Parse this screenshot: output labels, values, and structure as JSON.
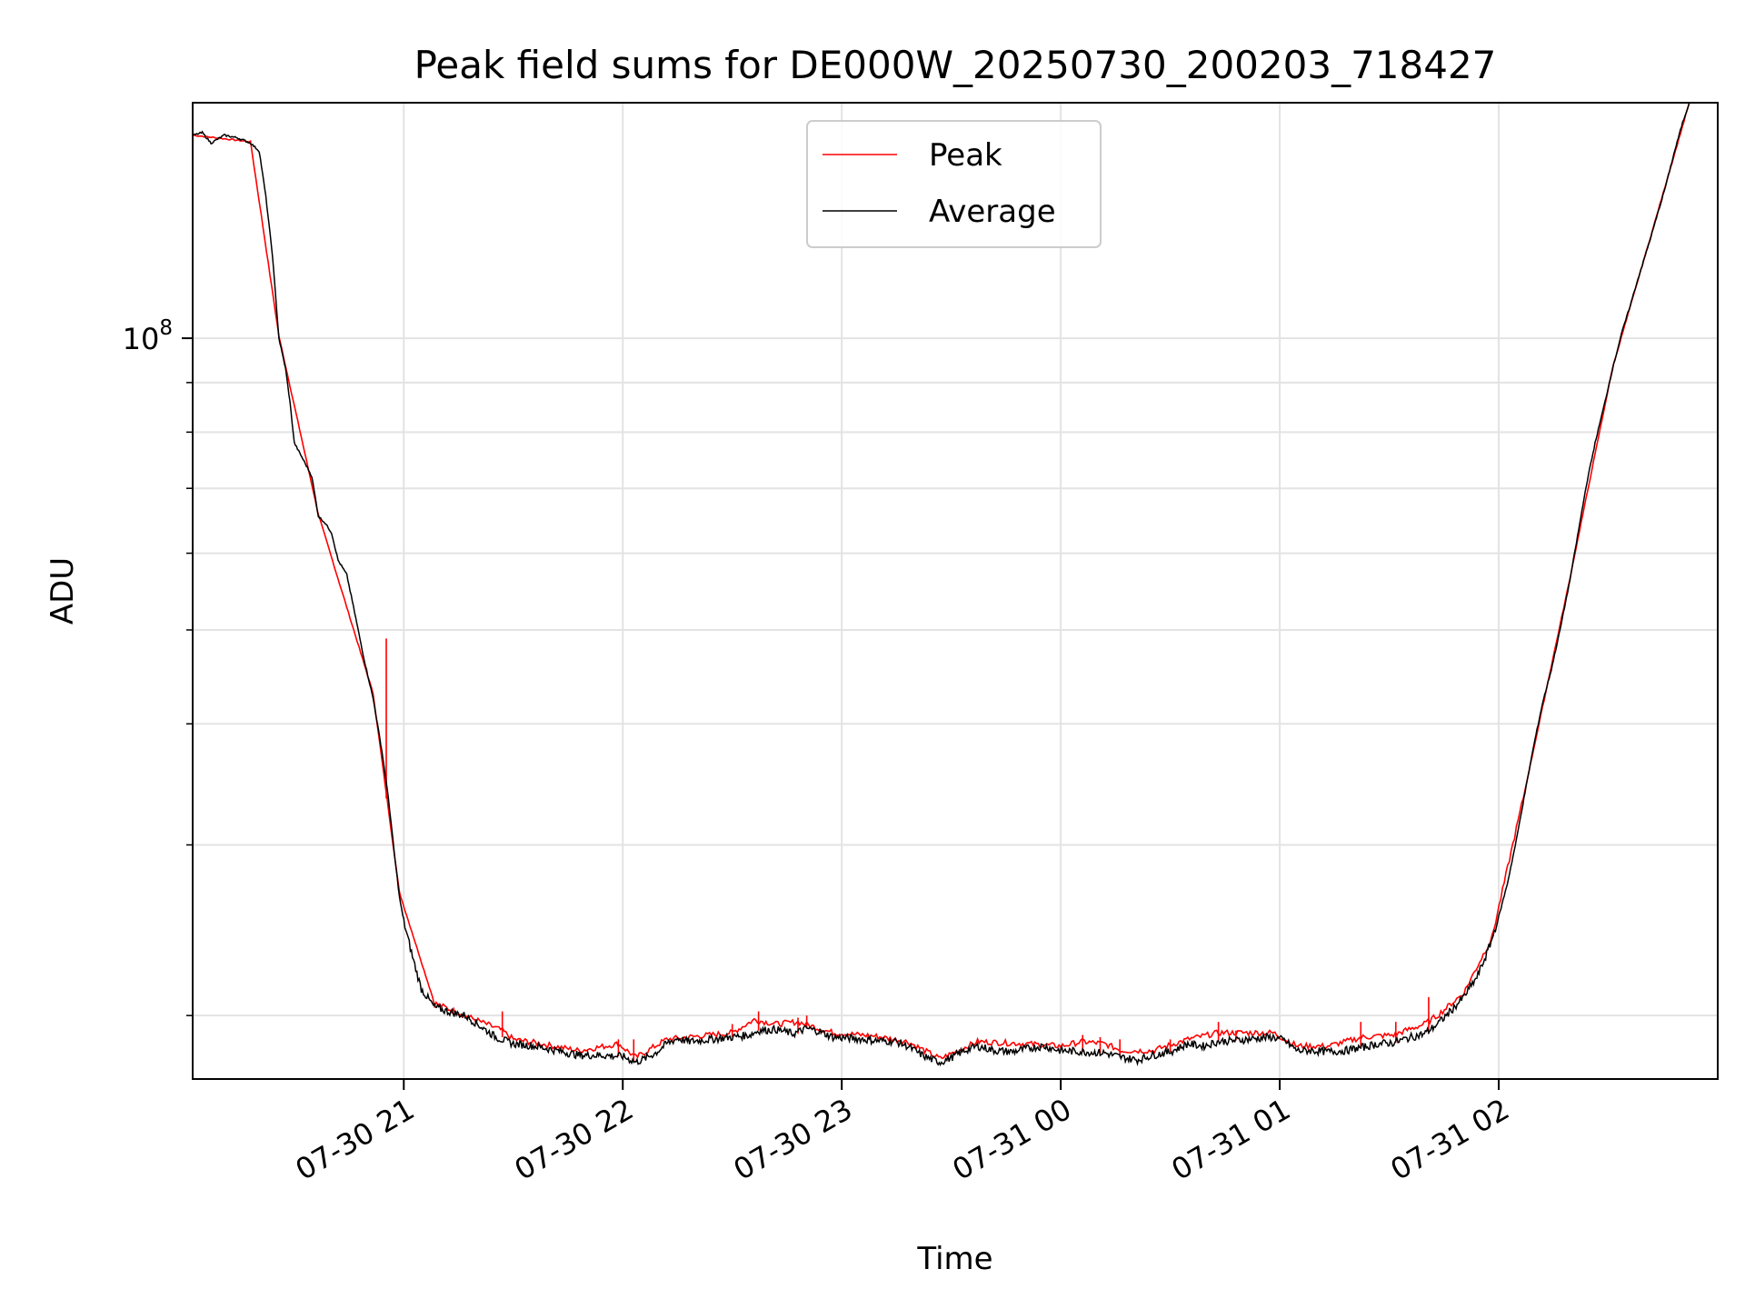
{
  "chart_data": {
    "type": "line",
    "title": "Peak field sums for DE000W_20250730_200203_718427",
    "xlabel": "Time",
    "ylabel": "ADU",
    "x_ticks": [
      "07-30 21",
      "07-30 22",
      "07-30 23",
      "07-31 00",
      "07-31 01",
      "07-31 02"
    ],
    "x_tick_hours": [
      1,
      2,
      3,
      4,
      5,
      6
    ],
    "xlim_hours": [
      0.036,
      7.0
    ],
    "y_scale": "log",
    "y_major_ticks": [
      {
        "value": 100000000,
        "base": "10",
        "exponent": "8"
      }
    ],
    "y_minor_ticks": [
      20000000,
      30000000,
      40000000,
      50000000,
      60000000,
      70000000,
      80000000,
      90000000,
      200000000
    ],
    "ylim": [
      17200000,
      175000000
    ],
    "grid": true,
    "legend": {
      "position": "top-center",
      "entries": [
        "Peak",
        "Average"
      ]
    },
    "colors": {
      "Peak": "#ff0000",
      "Average": "#000000"
    },
    "x_anchor_time": "2025-07-30 20:00",
    "series": [
      {
        "name": "Average",
        "points": [
          [
            0.04,
            162000000
          ],
          [
            0.08,
            163000000
          ],
          [
            0.12,
            159000000
          ],
          [
            0.18,
            162000000
          ],
          [
            0.24,
            161000000
          ],
          [
            0.3,
            159000000
          ],
          [
            0.34,
            156000000
          ],
          [
            0.37,
            140000000
          ],
          [
            0.4,
            122000000
          ],
          [
            0.43,
            100000000
          ],
          [
            0.46,
            93000000
          ],
          [
            0.48,
            86000000
          ],
          [
            0.5,
            78000000
          ],
          [
            0.54,
            75000000
          ],
          [
            0.58,
            72000000
          ],
          [
            0.61,
            65500000
          ],
          [
            0.64,
            64500000
          ],
          [
            0.67,
            63000000
          ],
          [
            0.7,
            59000000
          ],
          [
            0.74,
            57000000
          ],
          [
            0.78,
            51500000
          ],
          [
            0.82,
            46500000
          ],
          [
            0.86,
            42500000
          ],
          [
            0.9,
            37500000
          ],
          [
            0.93,
            33500000
          ],
          [
            0.96,
            29000000
          ],
          [
            0.98,
            26500000
          ],
          [
            1.0,
            25000000
          ],
          [
            1.04,
            23000000
          ],
          [
            1.08,
            21300000
          ],
          [
            1.14,
            20400000
          ],
          [
            1.2,
            20200000
          ],
          [
            1.28,
            20000000
          ],
          [
            1.35,
            19500000
          ],
          [
            1.42,
            19000000
          ],
          [
            1.5,
            18700000
          ],
          [
            1.6,
            18600000
          ],
          [
            1.7,
            18400000
          ],
          [
            1.8,
            18200000
          ],
          [
            1.9,
            18200000
          ],
          [
            2.0,
            18150000
          ],
          [
            2.06,
            17900000
          ],
          [
            2.1,
            18050000
          ],
          [
            2.15,
            18300000
          ],
          [
            2.2,
            18700000
          ],
          [
            2.25,
            18950000
          ],
          [
            2.3,
            18800000
          ],
          [
            2.4,
            18900000
          ],
          [
            2.5,
            19000000
          ],
          [
            2.58,
            19100000
          ],
          [
            2.62,
            19300000
          ],
          [
            2.7,
            19350000
          ],
          [
            2.78,
            19150000
          ],
          [
            2.84,
            19400000
          ],
          [
            2.9,
            19250000
          ],
          [
            2.96,
            19000000
          ],
          [
            3.05,
            18950000
          ],
          [
            3.15,
            18850000
          ],
          [
            3.25,
            18800000
          ],
          [
            3.3,
            18600000
          ],
          [
            3.35,
            18300000
          ],
          [
            3.4,
            18050000
          ],
          [
            3.45,
            17900000
          ],
          [
            3.5,
            18100000
          ],
          [
            3.56,
            18400000
          ],
          [
            3.62,
            18600000
          ],
          [
            3.7,
            18400000
          ],
          [
            3.78,
            18350000
          ],
          [
            3.85,
            18500000
          ],
          [
            3.92,
            18600000
          ],
          [
            4.0,
            18400000
          ],
          [
            4.1,
            18350000
          ],
          [
            4.2,
            18300000
          ],
          [
            4.28,
            18100000
          ],
          [
            4.35,
            18000000
          ],
          [
            4.42,
            18200000
          ],
          [
            4.5,
            18350000
          ],
          [
            4.58,
            18700000
          ],
          [
            4.65,
            18600000
          ],
          [
            4.72,
            18800000
          ],
          [
            4.8,
            18850000
          ],
          [
            4.9,
            18950000
          ],
          [
            4.97,
            19000000
          ],
          [
            5.02,
            18850000
          ],
          [
            5.08,
            18400000
          ],
          [
            5.15,
            18400000
          ],
          [
            5.22,
            18350000
          ],
          [
            5.3,
            18400000
          ],
          [
            5.38,
            18550000
          ],
          [
            5.45,
            18700000
          ],
          [
            5.52,
            18750000
          ],
          [
            5.6,
            19000000
          ],
          [
            5.66,
            19150000
          ],
          [
            5.72,
            19600000
          ],
          [
            5.78,
            20200000
          ],
          [
            5.84,
            20900000
          ],
          [
            5.9,
            21900000
          ],
          [
            5.94,
            23000000
          ],
          [
            5.97,
            24000000
          ],
          [
            6.0,
            25300000
          ],
          [
            6.04,
            27400000
          ],
          [
            6.08,
            30300000
          ],
          [
            6.12,
            34000000
          ],
          [
            6.16,
            38000000
          ],
          [
            6.2,
            42000000
          ],
          [
            6.24,
            45500000
          ],
          [
            6.28,
            50000000
          ],
          [
            6.32,
            55500000
          ],
          [
            6.36,
            62500000
          ],
          [
            6.4,
            70500000
          ],
          [
            6.44,
            78000000
          ],
          [
            6.48,
            85000000
          ],
          [
            6.52,
            93000000
          ],
          [
            6.56,
            101000000
          ],
          [
            6.6,
            108000000
          ],
          [
            6.64,
            116000000
          ],
          [
            6.68,
            124000000
          ],
          [
            6.72,
            133000000
          ],
          [
            6.76,
            143000000
          ],
          [
            6.8,
            155000000
          ],
          [
            6.84,
            167000000
          ],
          [
            6.87,
            175000000
          ]
        ]
      },
      {
        "name": "Peak",
        "points": [
          [
            0.04,
            162000000
          ],
          [
            0.3,
            159500000
          ],
          [
            0.43,
            100500000
          ],
          [
            0.61,
            65800000
          ],
          [
            0.86,
            43000000
          ],
          [
            0.98,
            26800000
          ],
          [
            1.14,
            20600000
          ],
          [
            1.45,
            19300000
          ],
          [
            1.5,
            18900000
          ],
          [
            1.6,
            18750000
          ],
          [
            1.8,
            18400000
          ],
          [
            1.98,
            18700000
          ],
          [
            2.06,
            18100000
          ],
          [
            2.2,
            18900000
          ],
          [
            2.3,
            19000000
          ],
          [
            2.5,
            19200000
          ],
          [
            2.6,
            19800000
          ],
          [
            2.7,
            19600000
          ],
          [
            2.8,
            19700000
          ],
          [
            2.96,
            19200000
          ],
          [
            3.15,
            19050000
          ],
          [
            3.3,
            18800000
          ],
          [
            3.45,
            18050000
          ],
          [
            3.62,
            18800000
          ],
          [
            3.85,
            18700000
          ],
          [
            4.0,
            18600000
          ],
          [
            4.1,
            18800000
          ],
          [
            4.2,
            18700000
          ],
          [
            4.28,
            18400000
          ],
          [
            4.42,
            18400000
          ],
          [
            4.58,
            18900000
          ],
          [
            4.72,
            19200000
          ],
          [
            4.8,
            19200000
          ],
          [
            4.97,
            19200000
          ],
          [
            5.08,
            18600000
          ],
          [
            5.22,
            18600000
          ],
          [
            5.38,
            19000000
          ],
          [
            5.52,
            19100000
          ],
          [
            5.66,
            19600000
          ],
          [
            5.72,
            20000000
          ],
          [
            5.84,
            21100000
          ],
          [
            5.97,
            24100000
          ],
          [
            6.12,
            34200000
          ],
          [
            6.32,
            55800000
          ],
          [
            6.52,
            93300000
          ],
          [
            6.72,
            133500000
          ],
          [
            6.87,
            175000000
          ]
        ]
      }
    ],
    "peak_spikes": [
      [
        0.92,
        49000000
      ],
      [
        1.45,
        20200000
      ],
      [
        1.98,
        18900000
      ],
      [
        2.05,
        18900000
      ],
      [
        2.5,
        19600000
      ],
      [
        2.62,
        20200000
      ],
      [
        2.8,
        19900000
      ],
      [
        2.84,
        20000000
      ],
      [
        4.1,
        19100000
      ],
      [
        4.18,
        19000000
      ],
      [
        4.27,
        18900000
      ],
      [
        4.5,
        18900000
      ],
      [
        4.72,
        19700000
      ],
      [
        4.8,
        19300000
      ],
      [
        5.37,
        19700000
      ],
      [
        5.53,
        19700000
      ],
      [
        5.68,
        20900000
      ]
    ]
  }
}
